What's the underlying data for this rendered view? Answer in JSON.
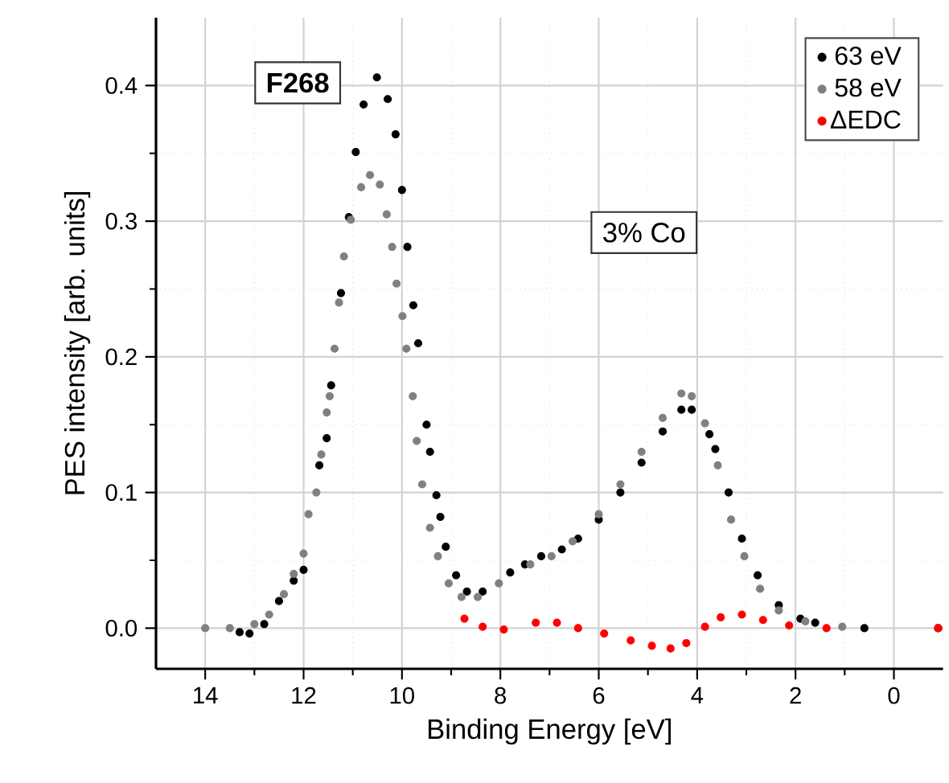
{
  "chart_data": {
    "type": "scatter",
    "xlabel": "Binding Energy [eV]",
    "ylabel": "PES intensity [arb. units]",
    "xlim": [
      15,
      -1
    ],
    "ylim": [
      -0.03,
      0.45
    ],
    "xticks": [
      14,
      12,
      10,
      8,
      6,
      4,
      2,
      0
    ],
    "yticks": [
      {
        "value": 0,
        "label": "0.0"
      },
      {
        "value": 0.1,
        "label": "0.1"
      },
      {
        "value": 0.2,
        "label": "0.2"
      },
      {
        "value": 0.3,
        "label": "0.3"
      },
      {
        "value": 0.4,
        "label": "0.4"
      }
    ],
    "grid": true,
    "legend": "top right",
    "marker": "circle",
    "annotations": [
      "F268",
      "3% Co"
    ],
    "series": [
      {
        "name": "63 eV",
        "color": "#000000",
        "x": [
          13.3,
          13.1,
          12.8,
          12.5,
          12.2,
          12.0,
          11.68,
          11.53,
          11.44,
          11.24,
          11.08,
          10.94,
          10.78,
          10.51,
          10.29,
          10.13,
          10.0,
          9.89,
          9.77,
          9.67,
          9.5,
          9.43,
          9.3,
          9.22,
          9.11,
          8.9,
          8.68,
          8.36,
          7.8,
          7.5,
          7.17,
          6.75,
          6.42,
          6.0,
          5.56,
          5.13,
          4.7,
          4.32,
          4.11,
          3.75,
          3.63,
          3.36,
          3.09,
          2.77,
          2.34,
          1.9,
          1.6,
          0.6,
          -0.9
        ],
        "values": [
          -0.003,
          -0.004,
          0.003,
          0.02,
          0.035,
          0.043,
          0.12,
          0.14,
          0.179,
          0.247,
          0.303,
          0.351,
          0.386,
          0.406,
          0.39,
          0.364,
          0.323,
          0.281,
          0.238,
          0.21,
          0.15,
          0.13,
          0.098,
          0.082,
          0.06,
          0.039,
          0.027,
          0.027,
          0.041,
          0.047,
          0.053,
          0.058,
          0.066,
          0.08,
          0.1,
          0.122,
          0.145,
          0.161,
          0.161,
          0.143,
          0.132,
          0.1,
          0.066,
          0.039,
          0.017,
          0.007,
          0.004,
          0.0,
          0.0
        ]
      },
      {
        "name": "58 eV",
        "color": "#808080",
        "x": [
          14.0,
          13.5,
          13.0,
          12.7,
          12.4,
          12.2,
          12.0,
          11.9,
          11.74,
          11.64,
          11.53,
          11.47,
          11.37,
          11.28,
          11.18,
          11.04,
          10.83,
          10.65,
          10.45,
          10.31,
          10.2,
          10.11,
          9.99,
          9.91,
          9.78,
          9.7,
          9.59,
          9.43,
          9.27,
          9.05,
          8.79,
          8.46,
          8.03,
          7.39,
          6.96,
          6.53,
          6.0,
          5.56,
          5.13,
          4.7,
          4.32,
          4.11,
          3.84,
          3.58,
          3.31,
          3.04,
          2.72,
          2.34,
          1.8,
          1.05,
          -0.9
        ],
        "values": [
          0.0,
          0.0,
          0.003,
          0.01,
          0.025,
          0.04,
          0.055,
          0.084,
          0.1,
          0.128,
          0.159,
          0.171,
          0.206,
          0.24,
          0.274,
          0.301,
          0.325,
          0.334,
          0.327,
          0.305,
          0.281,
          0.254,
          0.23,
          0.206,
          0.171,
          0.138,
          0.106,
          0.074,
          0.053,
          0.033,
          0.023,
          0.023,
          0.033,
          0.047,
          0.053,
          0.064,
          0.084,
          0.106,
          0.13,
          0.155,
          0.173,
          0.171,
          0.151,
          0.12,
          0.08,
          0.053,
          0.029,
          0.013,
          0.005,
          0.001,
          0.0
        ]
      },
      {
        "name": "ΔEDC",
        "color": "#ff0000",
        "x": [
          8.73,
          8.36,
          7.93,
          7.28,
          6.85,
          6.42,
          5.89,
          5.35,
          4.92,
          4.54,
          4.22,
          3.84,
          3.52,
          3.09,
          2.66,
          2.13,
          1.37,
          -0.9
        ],
        "values": [
          0.007,
          0.001,
          -0.001,
          0.004,
          0.004,
          0.0,
          -0.004,
          -0.009,
          -0.013,
          -0.015,
          -0.011,
          0.001,
          0.008,
          0.01,
          0.006,
          0.002,
          0.0,
          0.0
        ]
      }
    ]
  }
}
